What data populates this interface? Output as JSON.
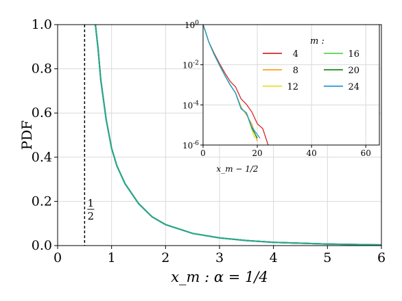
{
  "chart_data": [
    {
      "type": "line",
      "xlabel": "x_m :    α = 1/4",
      "ylabel": "PDF",
      "xlim": [
        0,
        6
      ],
      "ylim": [
        0,
        1.0
      ],
      "xticks": [
        "0",
        "1",
        "2",
        "3",
        "4",
        "5",
        "6"
      ],
      "yticks": [
        "0.0",
        "0.2",
        "0.4",
        "0.6",
        "0.8",
        "1.0"
      ],
      "grid": true,
      "annotations": [
        {
          "text": "1/2",
          "x": 0.5,
          "style": "dashed vertical line"
        }
      ],
      "series": [
        {
          "name": "4",
          "color": "#d62728"
        },
        {
          "name": "8",
          "color": "#ff9f1a"
        },
        {
          "name": "12",
          "color": "#e2e22a"
        },
        {
          "name": "16",
          "color": "#52d452"
        },
        {
          "name": "20",
          "color": "#1a8c1a"
        },
        {
          "name": "24",
          "color": "#1f9bd6"
        }
      ],
      "x": [
        0.7,
        0.75,
        0.8,
        0.9,
        1.0,
        1.1,
        1.25,
        1.5,
        1.75,
        2.0,
        2.5,
        3.0,
        3.5,
        4.0,
        5.0,
        6.0
      ],
      "y": [
        1.0,
        0.89,
        0.75,
        0.57,
        0.44,
        0.36,
        0.28,
        0.19,
        0.13,
        0.095,
        0.055,
        0.035,
        0.023,
        0.015,
        0.007,
        0.003
      ]
    },
    {
      "type": "line",
      "xlabel": "x_m − 1/2",
      "ylabel": "",
      "xlim": [
        0,
        65
      ],
      "ylim": [
        1e-06,
        1
      ],
      "yscale": "log",
      "xticks": [
        "0",
        "20",
        "40",
        "60"
      ],
      "yticks": [
        "10^0",
        "10^-2",
        "10^-4",
        "10^-6"
      ],
      "grid": true,
      "legend_title": "m :",
      "legend_placement": "top-right",
      "series": [
        {
          "name": "4",
          "color": "#d62728",
          "x": [
            0,
            1,
            2,
            4,
            6,
            8,
            10,
            12,
            14,
            16,
            18,
            20,
            22,
            24
          ],
          "y": [
            1,
            0.4,
            0.15,
            0.04,
            0.012,
            0.004,
            0.0015,
            0.0006,
            0.00025,
            0.0001,
            4e-05,
            1.5e-05,
            5e-06,
            1e-06
          ]
        },
        {
          "name": "8",
          "color": "#ff9f1a",
          "x": [
            0,
            1,
            2,
            4,
            6,
            8,
            10,
            12,
            14,
            16,
            18,
            20
          ],
          "y": [
            1,
            0.4,
            0.15,
            0.035,
            0.01,
            0.003,
            0.001,
            0.0003,
            0.0001,
            3e-05,
            1e-05,
            2e-06
          ]
        },
        {
          "name": "12",
          "color": "#e2e22a",
          "x": [
            0,
            1,
            2,
            4,
            6,
            8,
            10,
            12,
            14,
            16,
            18,
            19
          ],
          "y": [
            1,
            0.4,
            0.15,
            0.035,
            0.01,
            0.003,
            0.001,
            0.0003,
            0.0001,
            3e-05,
            8e-06,
            2e-06
          ]
        },
        {
          "name": "16",
          "color": "#52d452",
          "x": [
            0,
            1,
            2,
            4,
            6,
            8,
            10,
            12,
            14,
            16,
            18,
            20
          ],
          "y": [
            1,
            0.4,
            0.15,
            0.035,
            0.01,
            0.003,
            0.001,
            0.0003,
            0.0001,
            3e-05,
            9e-06,
            2e-06
          ]
        },
        {
          "name": "20",
          "color": "#1a8c1a",
          "x": [
            0,
            1,
            2,
            4,
            6,
            8,
            10,
            12,
            14,
            16,
            18,
            20
          ],
          "y": [
            1,
            0.4,
            0.15,
            0.035,
            0.01,
            0.003,
            0.001,
            0.0003,
            0.0001,
            3e-05,
            9e-06,
            2e-06
          ]
        },
        {
          "name": "24",
          "color": "#1f9bd6",
          "x": [
            0,
            1,
            2,
            4,
            6,
            8,
            10,
            12,
            14,
            16,
            18,
            21
          ],
          "y": [
            1,
            0.4,
            0.15,
            0.035,
            0.01,
            0.003,
            0.001,
            0.0003,
            0.0001,
            3e-05,
            1e-05,
            2e-06
          ]
        }
      ]
    }
  ]
}
